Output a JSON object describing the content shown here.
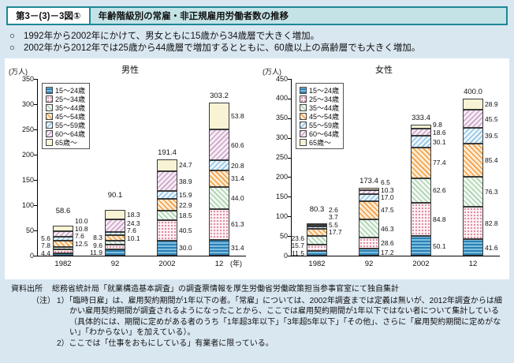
{
  "header": {
    "fig_label": "第3－(3)－3図①",
    "title": "年齢階級別の常雇・非正規雇用労働者数の推移"
  },
  "bullets": [
    {
      "marker": "○",
      "text": "1992年から2002年にかけて、男女ともに15歳から34歳層で大きく増加。"
    },
    {
      "marker": "○",
      "text": "2002年から2012年では25歳から44歳層で増加するとともに、60歳以上の高齢層でも大きく増加。"
    }
  ],
  "colors": {
    "page_background": "#d9e7f1",
    "header_border": "#1d8796",
    "header_fill": "#c4e3e6",
    "panel_background": "#ffffff"
  },
  "chart_data": [
    {
      "type": "bar",
      "stacked": true,
      "title": "男性",
      "unit_label": "(万人)",
      "year_label": "(年)",
      "categories": [
        "1982",
        "92",
        "2002",
        "12"
      ],
      "ylim": [
        0,
        350
      ],
      "ytick": 50,
      "legend_position": "upper-left",
      "grid": false,
      "series": [
        {
          "name": "15～24歳",
          "pattern": "hstripe",
          "c1": "#2e7fb0",
          "c2": "#7cc0e4",
          "values": [
            4.4,
            11.9,
            30.0,
            31.4
          ]
        },
        {
          "name": "25～34歳",
          "pattern": "dots",
          "c1": "#e08aa0",
          "c2": "#fdf4f6",
          "values": [
            7.8,
            9.6,
            40.5,
            61.3
          ]
        },
        {
          "name": "35～44歳",
          "pattern": "diag",
          "c1": "#a9d0ae",
          "c2": "#f1f8f1",
          "values": [
            5.6,
            8.3,
            18.5,
            44.0
          ]
        },
        {
          "name": "45～54歳",
          "pattern": "diag",
          "c1": "#f29b40",
          "c2": "#fcebd2",
          "values": [
            12.5,
            10.1,
            22.9,
            31.4
          ]
        },
        {
          "name": "55～59歳",
          "pattern": "diag2",
          "c1": "#8ec1e2",
          "c2": "#ebf5fc",
          "values": [
            7.6,
            7.6,
            15.9,
            20.8
          ]
        },
        {
          "name": "60～64歳",
          "pattern": "diag2",
          "c1": "#cba0c6",
          "c2": "#f5ecf4",
          "values": [
            10.8,
            24.3,
            38.9,
            60.6
          ]
        },
        {
          "name": "65歳～",
          "pattern": "solid",
          "c1": "#f8f3d4",
          "c2": "#f8f3d4",
          "values": [
            10.0,
            18.3,
            24.7,
            53.8
          ]
        }
      ],
      "totals": [
        58.6,
        90.1,
        191.4,
        303.2
      ]
    },
    {
      "type": "bar",
      "stacked": true,
      "title": "女性",
      "unit_label": "(万人)",
      "year_label": "",
      "categories": [
        "1982",
        "92",
        "2002",
        "12"
      ],
      "ylim": [
        0,
        450
      ],
      "ytick": 50,
      "legend_position": "upper-left",
      "grid": false,
      "series": [
        {
          "name": "15～24歳",
          "pattern": "hstripe",
          "c1": "#2e7fb0",
          "c2": "#7cc0e4",
          "values": [
            11.5,
            17.2,
            50.1,
            41.6
          ]
        },
        {
          "name": "25～34歳",
          "pattern": "dots",
          "c1": "#e08aa0",
          "c2": "#fdf4f6",
          "values": [
            15.7,
            28.6,
            84.8,
            82.8
          ]
        },
        {
          "name": "35～44歳",
          "pattern": "diag",
          "c1": "#a9d0ae",
          "c2": "#f1f8f1",
          "values": [
            23.6,
            46.3,
            62.6,
            76.3
          ]
        },
        {
          "name": "45～54歳",
          "pattern": "diag",
          "c1": "#f29b40",
          "c2": "#fcebd2",
          "values": [
            17.7,
            47.5,
            77.4,
            85.4
          ]
        },
        {
          "name": "55～59歳",
          "pattern": "diag2",
          "c1": "#8ec1e2",
          "c2": "#ebf5fc",
          "values": [
            5.5,
            17.0,
            30.1,
            39.5
          ]
        },
        {
          "name": "60～64歳",
          "pattern": "diag2",
          "c1": "#cba0c6",
          "c2": "#f5ecf4",
          "values": [
            3.7,
            10.3,
            18.6,
            45.5
          ]
        },
        {
          "name": "65歳～",
          "pattern": "solid",
          "c1": "#f8f3d4",
          "c2": "#f8f3d4",
          "values": [
            2.6,
            6.5,
            9.8,
            28.9
          ]
        }
      ],
      "totals": [
        80.3,
        173.4,
        333.4,
        400.0
      ]
    }
  ],
  "footer": {
    "source_label": "資料出所",
    "source_text": "総務省統計局「就業構造基本調査」の調査票情報を厚生労働省労働政策担当参事官室にて独自集計",
    "note_label": "（注）",
    "notes": [
      "1）「臨時日雇」は、雇用契約期間が1年以下の者。「常雇」については、2002年調査までは定義は無いが、2012年調査からは細かい雇用契約期間が調査されるようになったことから、ここでは雇用契約期間が1年以下ではない者について集計している（具体的には、期間に定めがある者のうち「1年超3年以下」「3年超5年以下」「その他」、さらに「雇用契約期間に定めがない」「わからない」を加えている）。",
      "2）ここでは「仕事をおもにしている」有業者に限っている。"
    ]
  }
}
